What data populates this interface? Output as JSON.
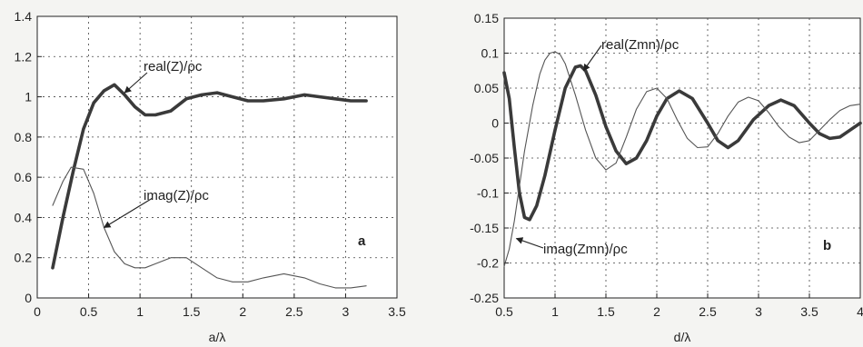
{
  "chart_data": [
    {
      "type": "line",
      "panel_label": "a",
      "xlabel": "a/λ",
      "ylabel": "",
      "xlim": [
        0,
        3.5
      ],
      "ylim": [
        0,
        1.4
      ],
      "xticks": [
        0,
        0.5,
        1,
        1.5,
        2,
        2.5,
        3,
        3.5
      ],
      "xtick_labels": [
        "0",
        "0.5",
        "1",
        "1.5",
        "2",
        "2.5",
        "3",
        "3.5"
      ],
      "yticks": [
        0,
        0.2,
        0.4,
        0.6,
        0.8,
        1,
        1.2,
        1.4
      ],
      "ytick_labels": [
        "0",
        "0.2",
        "0.4",
        "0.6",
        "0.8",
        "1",
        "1.2",
        "1.4"
      ],
      "grid": true,
      "series": [
        {
          "name": "real(Z)/ρc",
          "style": "thick",
          "x": [
            0.15,
            0.25,
            0.35,
            0.45,
            0.55,
            0.65,
            0.75,
            0.85,
            0.95,
            1.05,
            1.15,
            1.3,
            1.45,
            1.6,
            1.75,
            1.9,
            2.05,
            2.2,
            2.4,
            2.6,
            2.75,
            2.9,
            3.05,
            3.2
          ],
          "y": [
            0.15,
            0.4,
            0.63,
            0.84,
            0.97,
            1.03,
            1.06,
            1.01,
            0.95,
            0.91,
            0.91,
            0.93,
            0.99,
            1.01,
            1.02,
            1.0,
            0.98,
            0.98,
            0.99,
            1.01,
            1.0,
            0.99,
            0.98,
            0.98
          ]
        },
        {
          "name": "imag(Z)/ρc",
          "style": "thin",
          "x": [
            0.15,
            0.25,
            0.33,
            0.45,
            0.55,
            0.65,
            0.75,
            0.85,
            0.95,
            1.05,
            1.15,
            1.3,
            1.45,
            1.6,
            1.75,
            1.9,
            2.05,
            2.2,
            2.4,
            2.6,
            2.75,
            2.9,
            3.05,
            3.2
          ],
          "y": [
            0.46,
            0.58,
            0.65,
            0.64,
            0.52,
            0.35,
            0.23,
            0.17,
            0.15,
            0.15,
            0.17,
            0.2,
            0.2,
            0.15,
            0.1,
            0.08,
            0.08,
            0.1,
            0.12,
            0.1,
            0.07,
            0.05,
            0.05,
            0.06
          ]
        }
      ],
      "annotations": [
        {
          "text": "real(Z)/ρc",
          "arrow_to": [
            0.85,
            1.02
          ]
        },
        {
          "text": "imag(Z)/ρc",
          "arrow_to": [
            0.65,
            0.35
          ]
        }
      ]
    },
    {
      "type": "line",
      "panel_label": "b",
      "xlabel": "d/λ",
      "ylabel": "",
      "xlim": [
        0.5,
        4
      ],
      "ylim": [
        -0.25,
        0.15
      ],
      "xticks": [
        0.5,
        1,
        1.5,
        2,
        2.5,
        3,
        3.5,
        4
      ],
      "xtick_labels": [
        "0.5",
        "1",
        "1.5",
        "2",
        "2.5",
        "3",
        "3.5",
        "4"
      ],
      "yticks": [
        -0.25,
        -0.2,
        -0.15,
        -0.1,
        -0.05,
        0,
        0.05,
        0.1,
        0.15
      ],
      "ytick_labels": [
        "-0.25",
        "-0.2",
        "-0.15",
        "-0.1",
        "-0.05",
        "0",
        "0.05",
        "0.1",
        "0.15"
      ],
      "grid": true,
      "series": [
        {
          "name": "real(Zmn)/ρc",
          "style": "thick",
          "x": [
            0.5,
            0.55,
            0.6,
            0.65,
            0.7,
            0.75,
            0.82,
            0.9,
            1.0,
            1.1,
            1.2,
            1.25,
            1.3,
            1.4,
            1.5,
            1.6,
            1.7,
            1.8,
            1.9,
            2.0,
            2.1,
            2.22,
            2.35,
            2.5,
            2.6,
            2.7,
            2.8,
            2.95,
            3.1,
            3.22,
            3.35,
            3.5,
            3.6,
            3.7,
            3.8,
            3.9,
            4.0
          ],
          "y": [
            0.072,
            0.035,
            -0.035,
            -0.1,
            -0.135,
            -0.138,
            -0.118,
            -0.075,
            -0.01,
            0.05,
            0.08,
            0.082,
            0.075,
            0.04,
            -0.005,
            -0.04,
            -0.058,
            -0.05,
            -0.025,
            0.01,
            0.035,
            0.046,
            0.035,
            0.0,
            -0.025,
            -0.035,
            -0.025,
            0.005,
            0.025,
            0.033,
            0.025,
            0.0,
            -0.015,
            -0.022,
            -0.02,
            -0.01,
            0.0
          ]
        },
        {
          "name": "imag(Zmn)/ρc",
          "style": "thin",
          "x": [
            0.5,
            0.55,
            0.6,
            0.65,
            0.7,
            0.78,
            0.85,
            0.9,
            0.95,
            1.0,
            1.05,
            1.1,
            1.2,
            1.3,
            1.4,
            1.5,
            1.6,
            1.7,
            1.8,
            1.9,
            2.0,
            2.1,
            2.2,
            2.3,
            2.4,
            2.5,
            2.6,
            2.7,
            2.8,
            2.9,
            3.0,
            3.1,
            3.2,
            3.3,
            3.4,
            3.5,
            3.6,
            3.7,
            3.8,
            3.9,
            4.0
          ],
          "y": [
            -0.205,
            -0.18,
            -0.14,
            -0.09,
            -0.04,
            0.025,
            0.07,
            0.09,
            0.1,
            0.102,
            0.098,
            0.085,
            0.04,
            -0.01,
            -0.05,
            -0.067,
            -0.057,
            -0.02,
            0.02,
            0.045,
            0.05,
            0.035,
            0.005,
            -0.022,
            -0.035,
            -0.034,
            -0.015,
            0.01,
            0.03,
            0.037,
            0.032,
            0.015,
            -0.005,
            -0.02,
            -0.028,
            -0.025,
            -0.01,
            0.005,
            0.018,
            0.025,
            0.027
          ]
        }
      ],
      "annotations": [
        {
          "text": "real(Zmn)/ρc",
          "arrow_to": [
            1.28,
            0.075
          ]
        },
        {
          "text": "imag(Zmn)/ρc",
          "arrow_to": [
            0.62,
            -0.165
          ]
        }
      ]
    }
  ]
}
